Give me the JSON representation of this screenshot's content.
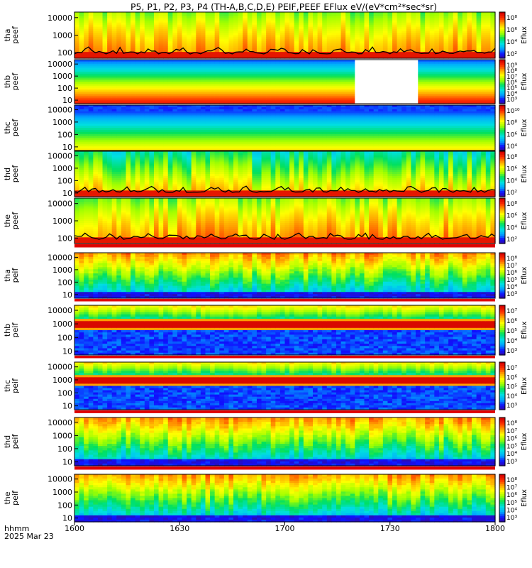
{
  "chart_data": {
    "type": "heatmap",
    "title": "P5, P1, P2, P3, P4 (TH-A,B,C,D,E) PEIF,PEEF EFlux eV/(eV*cm²*sec*sr)",
    "x_axis": {
      "date_label": "2025 Mar 23",
      "format_label": "hhmm",
      "ticks": [
        "1600",
        "1630",
        "1700",
        "1730",
        "1800"
      ],
      "range": [
        "1600",
        "1800"
      ]
    },
    "colorbar_label": "Eflux",
    "y_scale": "log",
    "panels": [
      {
        "id": "tha-peef",
        "ylabel": [
          "tha",
          "peef"
        ],
        "yticks": [
          "10000",
          "1000",
          "100"
        ],
        "cbar_ticks": [
          "10⁸",
          "10⁶",
          "10⁴",
          "10²"
        ],
        "style": "electron-warm",
        "black_curve": true
      },
      {
        "id": "thb-peef",
        "ylabel": [
          "thb",
          "peef"
        ],
        "yticks": [
          "10000",
          "1000",
          "100",
          "10"
        ],
        "cbar_ticks": [
          "10⁹",
          "10⁸",
          "10⁷",
          "10⁶",
          "10⁵",
          "10⁴",
          "10³"
        ],
        "style": "stripes-descending",
        "data_gap": [
          "1720",
          "1738"
        ]
      },
      {
        "id": "thc-peef",
        "ylabel": [
          "thc",
          "peef"
        ],
        "yticks": [
          "10000",
          "1000",
          "100",
          "10"
        ],
        "cbar_ticks": [
          "10¹⁰",
          "10⁸",
          "10⁶",
          "10⁴"
        ],
        "style": "stripes-ascending"
      },
      {
        "id": "thd-peef",
        "ylabel": [
          "thd",
          "peef"
        ],
        "yticks": [
          "10000",
          "1000",
          "100",
          "10"
        ],
        "cbar_ticks": [
          "10⁸",
          "10⁶",
          "10⁴",
          "10²"
        ],
        "style": "electron-mixed",
        "black_curve": true
      },
      {
        "id": "the-peef",
        "ylabel": [
          "the",
          "peef"
        ],
        "yticks": [
          "10000",
          "1000",
          "100"
        ],
        "cbar_ticks": [
          "10⁸",
          "10⁶",
          "10⁴",
          "10²"
        ],
        "style": "electron-warm",
        "black_curve": true
      },
      {
        "id": "tha-peif",
        "ylabel": [
          "tha",
          "peif"
        ],
        "yticks": [
          "10000",
          "1000",
          "100",
          "10"
        ],
        "cbar_ticks": [
          "10⁸",
          "10⁷",
          "10⁶",
          "10⁵",
          "10⁴",
          "10³"
        ],
        "style": "ion-cool"
      },
      {
        "id": "thb-peif",
        "ylabel": [
          "thb",
          "peif"
        ],
        "yticks": [
          "10000",
          "1000",
          "100",
          "10"
        ],
        "cbar_ticks": [
          "10⁷",
          "10⁶",
          "10⁵",
          "10⁴",
          "10³"
        ],
        "style": "ion-banded"
      },
      {
        "id": "thc-peif",
        "ylabel": [
          "thc",
          "peif"
        ],
        "yticks": [
          "10000",
          "1000",
          "100",
          "10"
        ],
        "cbar_ticks": [
          "10⁷",
          "10⁶",
          "10⁵",
          "10⁴",
          "10³"
        ],
        "style": "ion-banded"
      },
      {
        "id": "thd-peif",
        "ylabel": [
          "thd",
          "peif"
        ],
        "yticks": [
          "10000",
          "1000",
          "100",
          "10"
        ],
        "cbar_ticks": [
          "10⁸",
          "10⁷",
          "10⁶",
          "10⁵",
          "10⁴",
          "10³"
        ],
        "style": "ion-cool"
      },
      {
        "id": "the-peif",
        "ylabel": [
          "the",
          "peif"
        ],
        "yticks": [
          "10000",
          "1000",
          "100",
          "10"
        ],
        "cbar_ticks": [
          "10⁸",
          "10⁷",
          "10⁶",
          "10⁵",
          "10⁴",
          "10³"
        ],
        "style": "ion-cool"
      }
    ],
    "colormap": [
      "#ffffff",
      "#000000",
      "#3a0a8c",
      "#1010ff",
      "#00a8ff",
      "#00e0e0",
      "#00e060",
      "#a0ff00",
      "#ffff00",
      "#ffa000",
      "#ff3000",
      "#d00000"
    ]
  }
}
